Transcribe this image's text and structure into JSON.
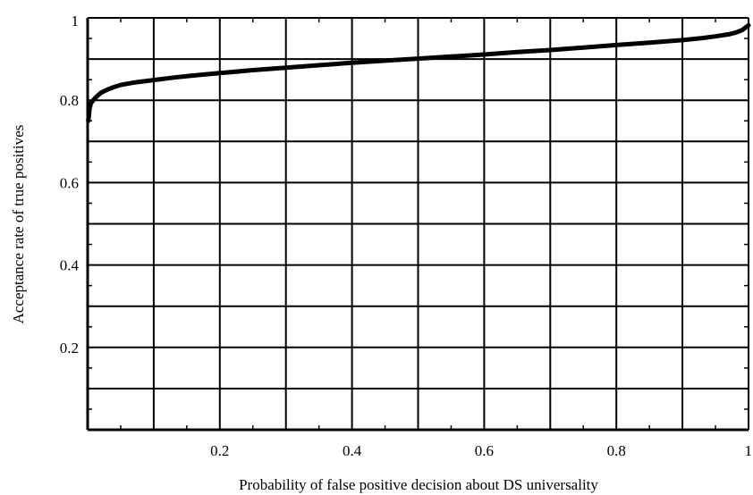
{
  "chart_data": {
    "type": "line",
    "title": "",
    "xlabel": "Probability of false positive decision about DS universality",
    "ylabel": "Acceptance rate of true positives",
    "xlim": [
      0,
      1
    ],
    "ylim": [
      0,
      1
    ],
    "x_ticks": [
      0,
      0.1,
      0.2,
      0.3,
      0.4,
      0.5,
      0.6,
      0.7,
      0.8,
      0.9,
      1
    ],
    "y_ticks": [
      0,
      0.1,
      0.2,
      0.3,
      0.4,
      0.5,
      0.6,
      0.7,
      0.8,
      0.9,
      1
    ],
    "x_tick_labels": [
      {
        "value": 0.2,
        "label": "0.2"
      },
      {
        "value": 0.4,
        "label": "0.4"
      },
      {
        "value": 0.6,
        "label": "0.6"
      },
      {
        "value": 0.8,
        "label": "0.8"
      },
      {
        "value": 1,
        "label": "1"
      }
    ],
    "y_tick_labels": [
      {
        "value": 0.2,
        "label": "0.2"
      },
      {
        "value": 0.4,
        "label": "0.4"
      },
      {
        "value": 0.6,
        "label": "0.6"
      },
      {
        "value": 0.8,
        "label": "0.8"
      },
      {
        "value": 1,
        "label": "1"
      }
    ],
    "grid": true,
    "legend": "none",
    "line_color": "#000000",
    "series": [
      {
        "x": [
          0.001,
          0.003,
          0.005,
          0.01,
          0.015,
          0.02,
          0.03,
          0.04,
          0.05,
          0.07,
          0.1,
          0.13,
          0.16,
          0.2,
          0.25,
          0.3,
          0.35,
          0.4,
          0.45,
          0.5,
          0.55,
          0.6,
          0.65,
          0.7,
          0.75,
          0.8,
          0.85,
          0.9,
          0.93,
          0.95,
          0.97,
          0.98,
          0.99,
          0.995,
          1.0
        ],
        "y": [
          0.75,
          0.78,
          0.793,
          0.803,
          0.811,
          0.818,
          0.826,
          0.832,
          0.837,
          0.843,
          0.849,
          0.855,
          0.86,
          0.866,
          0.873,
          0.879,
          0.885,
          0.891,
          0.896,
          0.901,
          0.906,
          0.911,
          0.917,
          0.922,
          0.928,
          0.934,
          0.94,
          0.946,
          0.951,
          0.955,
          0.96,
          0.964,
          0.97,
          0.976,
          0.982
        ]
      }
    ]
  }
}
